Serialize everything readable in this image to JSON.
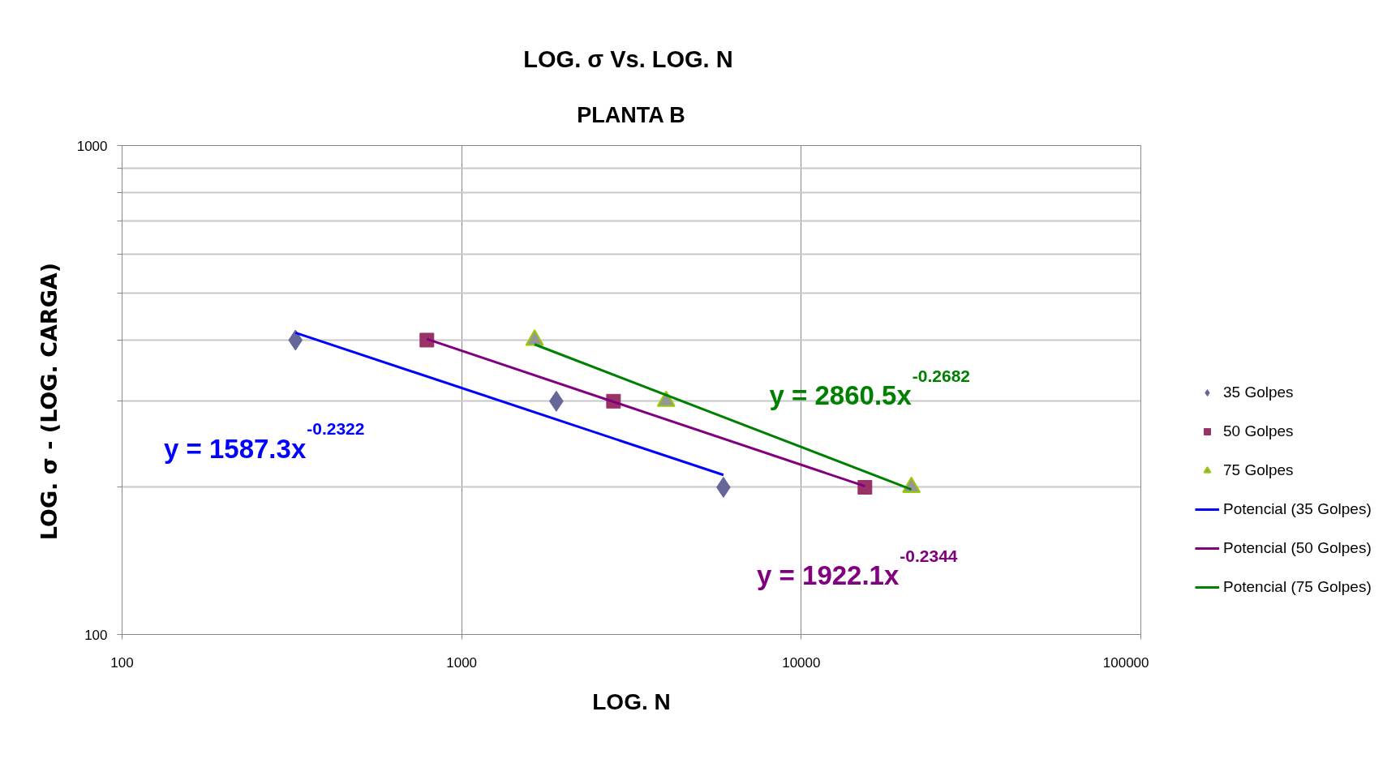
{
  "chart_data": {
    "type": "scatter",
    "title": "LOG. σ  Vs. LOG. N",
    "subtitle": "PLANTA B",
    "xlabel": "LOG. N",
    "ylabel": "LOG. σ    - (LOG. CARGA)",
    "log": "xy",
    "xlim": [
      100,
      100000
    ],
    "ylim": [
      100,
      1000
    ],
    "xticks": [
      100,
      1000,
      10000,
      100000
    ],
    "yticks": [
      100,
      {
        "value": 200,
        "label": null
      },
      {
        "value": 300,
        "label": null
      },
      {
        "value": 400,
        "label": null
      },
      {
        "value": 500,
        "label": null
      },
      {
        "value": 600,
        "label": null
      },
      {
        "value": 700,
        "label": null
      },
      {
        "value": 800,
        "label": null
      },
      {
        "value": 900,
        "label": null
      },
      1000
    ],
    "grid": true,
    "legend": "right",
    "series": [
      {
        "name": "35 Golpes",
        "color": "#666699",
        "marker": "diamond",
        "x": [
          324,
          1900,
          5900
        ],
        "values": [
          400,
          300,
          200
        ]
      },
      {
        "name": "50 Golpes",
        "color": "#993366",
        "marker": "square",
        "x": [
          790,
          2800,
          15400
        ],
        "values": [
          400,
          300,
          200
        ]
      },
      {
        "name": "75 Golpes",
        "color": "#969696",
        "marker": "triangle",
        "x": [
          1640,
          4000,
          21100
        ],
        "values": [
          400,
          300,
          200
        ]
      },
      {
        "name": "Potencial (35 Golpes)",
        "type": "line",
        "color": "#0000ff",
        "marker": "none",
        "line_style": "solid",
        "x": [
          324,
          5900
        ],
        "values": [
          414,
          212
        ]
      },
      {
        "name": "Potencial (50 Golpes)",
        "type": "line",
        "color": "#800080",
        "marker": "none",
        "line_style": "solid",
        "x": [
          790,
          15400
        ],
        "values": [
          402,
          201
        ]
      },
      {
        "name": "Potencial (75 Golpes)",
        "type": "line",
        "color": "#008000",
        "marker": "none",
        "line_style": "solid",
        "x": [
          1640,
          21100
        ],
        "values": [
          392,
          198
        ]
      }
    ],
    "annotations": [
      "y = 1587.3x$^{-0.2322}$",
      "y = 1922.1x$^{-0.2344}$",
      "y = 2860.5x$^{-0.2682}$"
    ]
  }
}
